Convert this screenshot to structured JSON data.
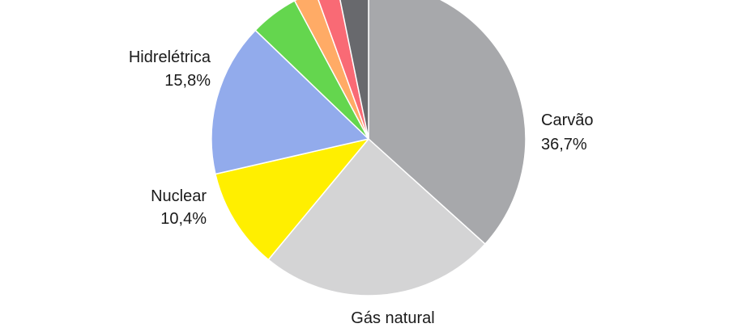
{
  "chart_data": {
    "type": "pie",
    "title": "",
    "start_angle_deg": 0,
    "direction": "clockwise",
    "stroke": "#ffffff",
    "slices": [
      {
        "id": "carvao",
        "label": "Carvão",
        "value": 36.7,
        "value_label": "36,7%",
        "color": "#A7A8AB",
        "show_label": true
      },
      {
        "id": "gas-natural",
        "label": "Gás natural",
        "value": 24.3,
        "value_label": "",
        "color": "#D4D4D5",
        "show_label": true
      },
      {
        "id": "nuclear",
        "label": "Nuclear",
        "value": 10.4,
        "value_label": "10,4%",
        "color": "#FFEF00",
        "show_label": true
      },
      {
        "id": "hidreletrica",
        "label": "Hidrelétrica",
        "value": 15.8,
        "value_label": "15,8%",
        "color": "#92ABEC",
        "show_label": true
      },
      {
        "id": "verde",
        "label": "",
        "value": 5.0,
        "value_label": "",
        "color": "#64D64E",
        "show_label": false
      },
      {
        "id": "laranja",
        "label": "",
        "value": 2.3,
        "value_label": "",
        "color": "#FFAB66",
        "show_label": false
      },
      {
        "id": "rosa",
        "label": "",
        "value": 2.3,
        "value_label": "",
        "color": "#F96A75",
        "show_label": false
      },
      {
        "id": "cinza-escuro",
        "label": "",
        "value": 3.2,
        "value_label": "",
        "color": "#68696D",
        "show_label": false
      }
    ]
  }
}
